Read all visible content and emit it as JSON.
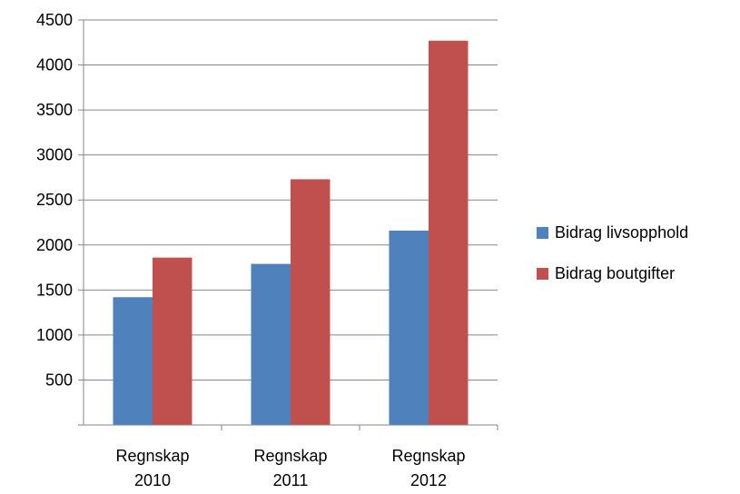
{
  "chart_data": {
    "type": "bar",
    "categories": [
      [
        "Regnskap",
        "2010"
      ],
      [
        "Regnskap",
        "2011"
      ],
      [
        "Regnskap",
        "2012"
      ]
    ],
    "series": [
      {
        "name": "Bidrag livsopphold",
        "color": "#4f81bd",
        "values": [
          1420,
          1790,
          2160
        ]
      },
      {
        "name": "Bidrag boutgifter",
        "color": "#c0504d",
        "values": [
          1860,
          2730,
          4270
        ]
      }
    ],
    "yticks": [
      "500",
      "1000",
      "1500",
      "2000",
      "2500",
      "3000",
      "3500",
      "4000",
      "4500"
    ],
    "ylim": [
      0,
      4500
    ],
    "grid": true,
    "legend": "right"
  }
}
